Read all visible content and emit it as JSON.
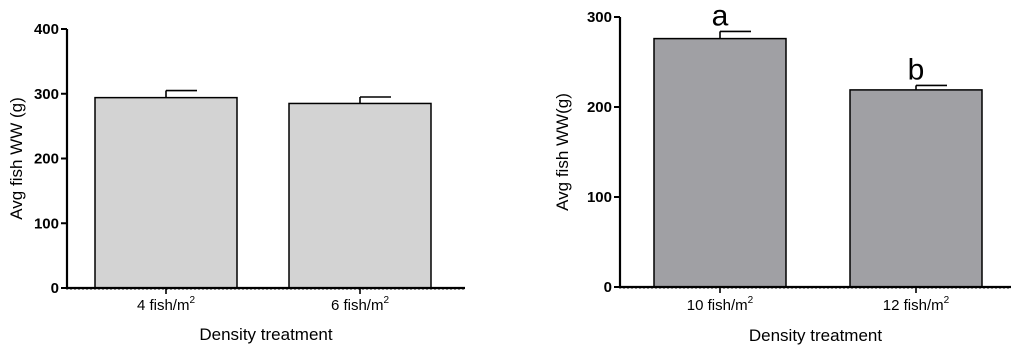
{
  "chart_data": [
    {
      "type": "bar",
      "categories": [
        "4 fish/m2",
        "6 fish/m2"
      ],
      "category_labels": [
        {
          "base": "4 fish/m",
          "sup": "2"
        },
        {
          "base": "6 fish/m",
          "sup": "2"
        }
      ],
      "values": [
        294,
        285
      ],
      "errors": [
        11,
        10
      ],
      "significance_letters": [
        "",
        ""
      ],
      "bar_color": "#d3d3d3",
      "title": "",
      "xlabel": "Density treatment",
      "ylabel": "Avg fish WW (g)",
      "ylim": [
        0,
        400
      ],
      "yticks": [
        0,
        100,
        200,
        300,
        400
      ],
      "ytick_labels": [
        "0",
        "100",
        "200",
        "300",
        "400"
      ],
      "grid": false
    },
    {
      "type": "bar",
      "categories": [
        "10 fish/m2",
        "12 fish/m2"
      ],
      "category_labels": [
        {
          "base": "10 fish/m",
          "sup": "2"
        },
        {
          "base": "12 fish/m",
          "sup": "2"
        }
      ],
      "values": [
        276,
        219
      ],
      "errors": [
        8,
        5
      ],
      "significance_letters": [
        "a",
        "b"
      ],
      "bar_color": "#a0a0a4",
      "title": "",
      "xlabel": "Density treatment",
      "ylabel": "Avg fish WW(g)",
      "ylim": [
        0,
        300
      ],
      "yticks": [
        0,
        100,
        200,
        300
      ],
      "ytick_labels": [
        "0",
        "100",
        "200",
        "300"
      ],
      "grid": false
    }
  ]
}
